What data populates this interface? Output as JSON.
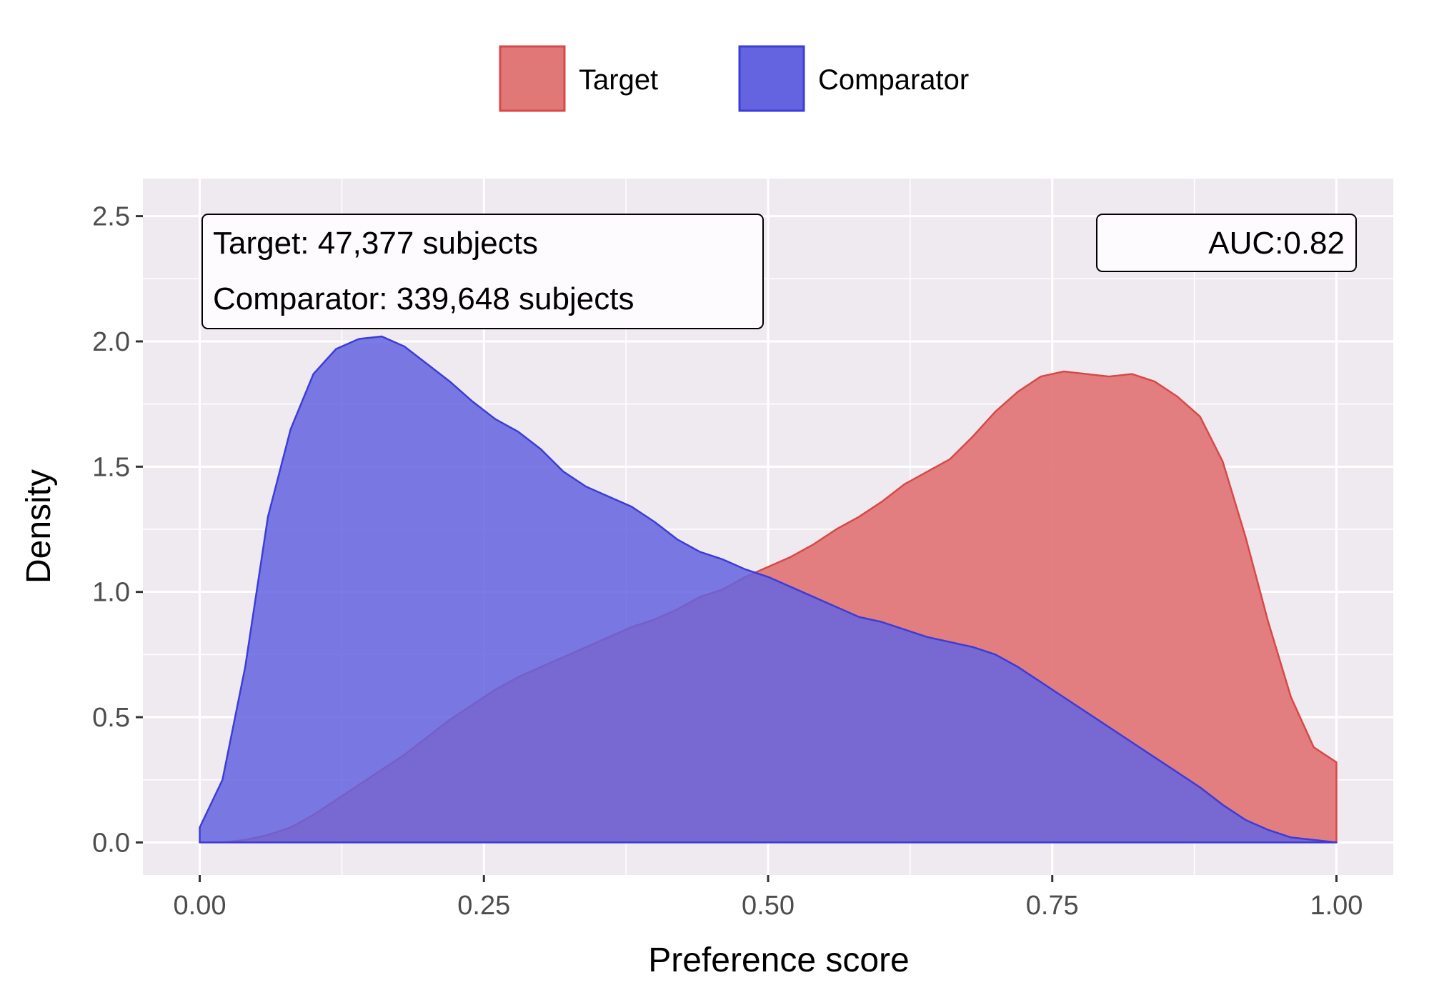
{
  "chart_data": {
    "type": "area",
    "xlabel": "Preference score",
    "ylabel": "Density",
    "xlim": [
      -0.05,
      1.05
    ],
    "ylim": [
      -0.13,
      2.65
    ],
    "x_ticks": [
      0.0,
      0.25,
      0.5,
      0.75,
      1.0
    ],
    "x_tick_labels": [
      "0.00",
      "0.25",
      "0.50",
      "0.75",
      "1.00"
    ],
    "y_ticks": [
      0.0,
      0.5,
      1.0,
      1.5,
      2.0,
      2.5
    ],
    "y_tick_labels": [
      "0.0",
      "0.5",
      "1.0",
      "1.5",
      "2.0",
      "2.5"
    ],
    "grid": true,
    "legend_position": "top",
    "annotations": {
      "subjects_line1": "Target: 47,377 subjects",
      "subjects_line2": "Comparator: 339,648 subjects",
      "auc": "AUC:0.82"
    },
    "x": [
      0.0,
      0.02,
      0.04,
      0.06,
      0.08,
      0.1,
      0.12,
      0.14,
      0.16,
      0.18,
      0.2,
      0.22,
      0.24,
      0.26,
      0.28,
      0.3,
      0.32,
      0.34,
      0.36,
      0.38,
      0.4,
      0.42,
      0.44,
      0.46,
      0.48,
      0.5,
      0.52,
      0.54,
      0.56,
      0.58,
      0.6,
      0.62,
      0.64,
      0.66,
      0.68,
      0.7,
      0.72,
      0.74,
      0.76,
      0.78,
      0.8,
      0.82,
      0.84,
      0.86,
      0.88,
      0.9,
      0.92,
      0.94,
      0.96,
      0.98,
      1.0
    ],
    "series": [
      {
        "name": "Target",
        "color": "#d94848",
        "fill": "#e07878",
        "values": [
          0.0,
          0.0,
          0.01,
          0.03,
          0.06,
          0.11,
          0.17,
          0.23,
          0.29,
          0.35,
          0.42,
          0.49,
          0.55,
          0.61,
          0.66,
          0.7,
          0.74,
          0.78,
          0.82,
          0.86,
          0.89,
          0.93,
          0.98,
          1.01,
          1.06,
          1.1,
          1.14,
          1.19,
          1.25,
          1.3,
          1.36,
          1.43,
          1.48,
          1.53,
          1.62,
          1.72,
          1.8,
          1.86,
          1.88,
          1.87,
          1.86,
          1.87,
          1.84,
          1.78,
          1.7,
          1.52,
          1.22,
          0.88,
          0.58,
          0.38,
          0.32
        ]
      },
      {
        "name": "Comparator",
        "color": "#3c3cd9",
        "fill": "#6464e1",
        "values": [
          0.06,
          0.25,
          0.7,
          1.3,
          1.65,
          1.87,
          1.97,
          2.01,
          2.02,
          1.98,
          1.91,
          1.84,
          1.76,
          1.69,
          1.64,
          1.57,
          1.48,
          1.42,
          1.38,
          1.34,
          1.28,
          1.21,
          1.16,
          1.13,
          1.09,
          1.06,
          1.02,
          0.98,
          0.94,
          0.9,
          0.88,
          0.85,
          0.82,
          0.8,
          0.78,
          0.75,
          0.7,
          0.64,
          0.58,
          0.52,
          0.46,
          0.4,
          0.34,
          0.28,
          0.22,
          0.15,
          0.09,
          0.05,
          0.02,
          0.01,
          0.0
        ]
      }
    ]
  }
}
